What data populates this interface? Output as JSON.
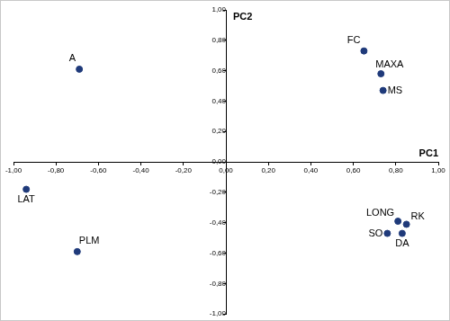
{
  "chart_data": {
    "type": "scatter",
    "x_label": "PC1",
    "y_label": "PC2",
    "point_labels": [
      "A",
      "LAT",
      "PLM",
      "FC",
      "MAXA",
      "MS",
      "LONG",
      "RK",
      "SO",
      "DA"
    ],
    "x": [
      -0.69,
      -0.94,
      -0.7,
      0.65,
      0.73,
      0.74,
      0.81,
      0.85,
      0.76,
      0.83
    ],
    "values": [
      0.61,
      -0.18,
      -0.59,
      0.73,
      0.58,
      0.47,
      -0.39,
      -0.41,
      -0.47,
      -0.47
    ],
    "color": "#1f3a7a",
    "xlim": [
      -1,
      1
    ],
    "ylim": [
      -1,
      1
    ],
    "xticks": [
      {
        "value": -1,
        "label": "-1,00"
      },
      {
        "value": -0.8,
        "label": "-0,80"
      },
      {
        "value": -0.6,
        "label": "-0,60"
      },
      {
        "value": -0.4,
        "label": "-0,40"
      },
      {
        "value": -0.2,
        "label": "-0,20"
      },
      {
        "value": 0,
        "label": "0,00"
      },
      {
        "value": 0.2,
        "label": "0,20"
      },
      {
        "value": 0.4,
        "label": "0,40"
      },
      {
        "value": 0.6,
        "label": "0,60"
      },
      {
        "value": 0.8,
        "label": "0,80"
      },
      {
        "value": 1,
        "label": "1,00"
      }
    ],
    "yticks": [
      {
        "value": -1,
        "label": "-1,00"
      },
      {
        "value": -0.8,
        "label": "-0,80"
      },
      {
        "value": -0.6,
        "label": "-0,60"
      },
      {
        "value": -0.4,
        "label": "-0,40"
      },
      {
        "value": -0.2,
        "label": "-0,20"
      },
      {
        "value": 0,
        "label": "0,00"
      },
      {
        "value": 0.2,
        "label": "0,20"
      },
      {
        "value": 0.4,
        "label": "0,40"
      },
      {
        "value": 0.6,
        "label": "0,60"
      },
      {
        "value": 0.8,
        "label": "0,80"
      },
      {
        "value": 1,
        "label": "1,00"
      }
    ],
    "grid": false
  }
}
